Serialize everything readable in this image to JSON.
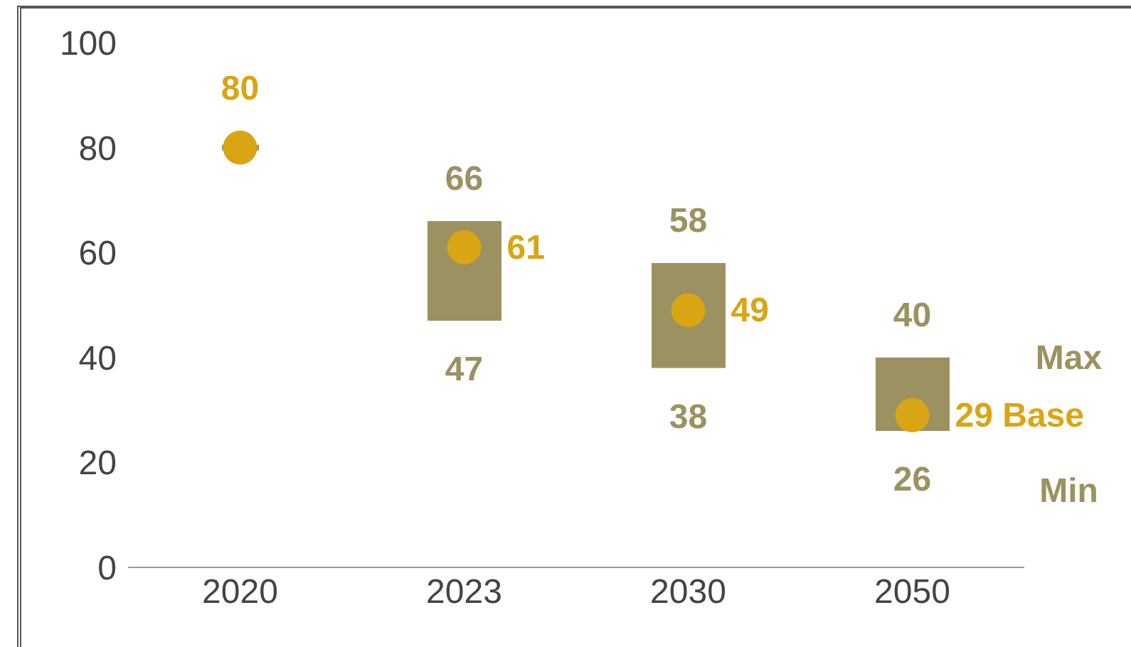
{
  "chart_data": {
    "type": "bar",
    "categories": [
      "2020",
      "2023",
      "2030",
      "2050"
    ],
    "series": [
      {
        "color": "#9c9160",
        "base": [
          80,
          47,
          38,
          26
        ],
        "values": [
          0,
          19,
          20,
          14
        ]
      },
      {
        "type": "scatter",
        "name": "Base",
        "color": "#d9a514",
        "values": [
          80,
          61,
          49,
          29
        ],
        "value_labels": [
          "80",
          "61",
          "49",
          "29"
        ]
      }
    ],
    "marker": "circle",
    "ylim": [
      0,
      100
    ],
    "yticks": [
      0,
      20,
      40,
      60,
      80,
      100
    ],
    "annotations": [
      {
        "text": "66",
        "x": "2023",
        "y": 66
      },
      {
        "text": "47",
        "x": "2023",
        "y": 47
      },
      {
        "text": "58",
        "x": "2030",
        "y": 58
      },
      {
        "text": "38",
        "x": "2030",
        "y": 38
      },
      {
        "text": "40",
        "x": "2050",
        "y": 40
      },
      {
        "text": "26",
        "x": "2050",
        "y": 26
      },
      "Max",
      "Min"
    ]
  }
}
